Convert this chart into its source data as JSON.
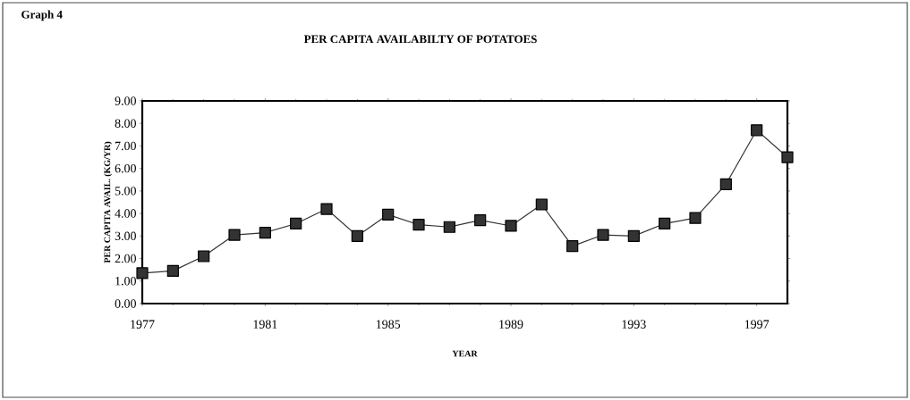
{
  "chart_data": {
    "type": "line",
    "title": "PER CAPITA AVAILABILTY OF POTATOES",
    "xlabel": "YEAR",
    "ylabel": "PER CAPITA AVAIL. (KG/YR)",
    "annotations": [
      "Graph 4"
    ],
    "x": [
      1977,
      1978,
      1979,
      1980,
      1981,
      1982,
      1983,
      1984,
      1985,
      1986,
      1987,
      1988,
      1989,
      1990,
      1991,
      1992,
      1993,
      1994,
      1995,
      1996,
      1997,
      1998
    ],
    "series": [
      {
        "color": "#333333",
        "values": [
          1.35,
          1.45,
          2.1,
          3.05,
          3.15,
          3.55,
          4.2,
          3.0,
          3.95,
          3.5,
          3.4,
          3.7,
          3.45,
          4.4,
          2.55,
          3.05,
          3.0,
          3.55,
          3.8,
          5.3,
          7.7,
          6.5
        ]
      }
    ],
    "xlim": [
      1977,
      1998
    ],
    "xticks": [
      1977,
      1981,
      1985,
      1989,
      1993,
      1997
    ],
    "ylim": [
      0,
      9
    ],
    "yticks": [
      {
        "value": 0,
        "label": "0.00"
      },
      {
        "value": 1,
        "label": "1.00"
      },
      {
        "value": 2,
        "label": "2.00"
      },
      {
        "value": 3,
        "label": "3.00"
      },
      {
        "value": 4,
        "label": "4.00"
      },
      {
        "value": 5,
        "label": "5.00"
      },
      {
        "value": 6,
        "label": "6.00"
      },
      {
        "value": 7,
        "label": "7.00"
      },
      {
        "value": 8,
        "label": "8.00"
      },
      {
        "value": 9,
        "label": "9.00"
      }
    ],
    "marker": "square",
    "line_style": "solid",
    "grid": false
  }
}
